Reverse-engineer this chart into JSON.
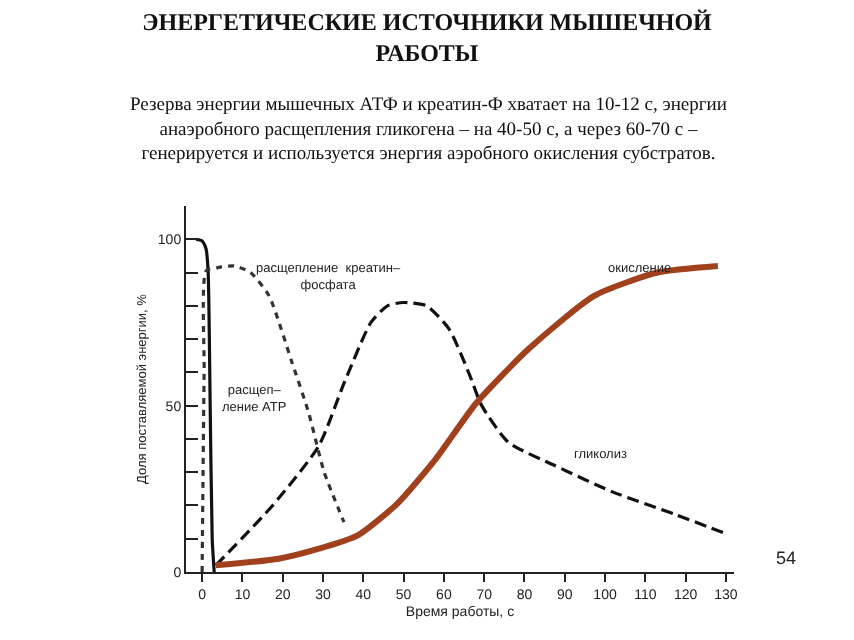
{
  "chart_data": {
    "type": "line",
    "title": "ЭНЕРГЕТИЧЕСКИЕ ИСТОЧНИКИ МЫШЕЧНОЙ\nРАБОТЫ",
    "subtitle": "Резерва энергии мышечных АТФ и креатин-Ф хватает на 10-12 с, энергии\nанаэробного расщепления гликогена – на 40-50 с, а через 60-70 с –\nгенерируется и используется энергия аэробного окисления субстратов.",
    "xlabel": "Время работы, с",
    "ylabel": "Доля поставляемой энергии, %",
    "xlim": [
      -4,
      132
    ],
    "ylim": [
      0,
      110
    ],
    "xticks": [
      0,
      10,
      20,
      30,
      40,
      50,
      60,
      70,
      80,
      90,
      100,
      110,
      120,
      130
    ],
    "yticks": [
      0,
      {
        "value": 10,
        "label": null
      },
      {
        "value": 20,
        "label": null
      },
      {
        "value": 30,
        "label": null
      },
      {
        "value": 40,
        "label": null
      },
      50,
      {
        "value": 60,
        "label": null
      },
      {
        "value": 70,
        "label": null
      },
      {
        "value": 80,
        "label": null
      },
      {
        "value": 90,
        "label": null
      },
      100
    ],
    "marker": "none",
    "series": [
      {
        "color": "#111111",
        "line_style": "solid",
        "x": [
          -1.5,
          0,
          1,
          1.5,
          2,
          2.5,
          3
        ],
        "values": [
          100,
          99.5,
          97,
          90,
          50,
          10,
          0
        ]
      },
      {
        "color": "#333333",
        "line_style": "dotted",
        "x": [
          0,
          0.5,
          1,
          4,
          8,
          12,
          16.6,
          22.3,
          26.4,
          30.3,
          35.2
        ],
        "values": [
          0,
          60,
          90.5,
          91.5,
          92,
          90,
          83,
          63,
          48,
          30,
          15
        ]
      },
      {
        "color": "#111111",
        "line_style": "dashed",
        "x": [
          3.4,
          17.5,
          29,
          35.3,
          41.9,
          46,
          50,
          55.7,
          61.3,
          66.3,
          69.4,
          76,
          87.5,
          102,
          117,
          130
        ],
        "values": [
          2,
          20,
          38,
          57,
          75,
          80,
          81,
          80,
          73,
          59.5,
          50,
          39,
          32,
          24,
          17.5,
          11.5
        ]
      },
      {
        "color": "#a0401c",
        "line_style": "solid",
        "x": [
          3.4,
          19,
          29,
          38.6,
          48.4,
          58,
          68,
          81,
          97.3,
          113,
          128
        ],
        "values": [
          2,
          4,
          7,
          11,
          20.5,
          34,
          50.7,
          67,
          83,
          90,
          92
        ]
      }
    ],
    "annotations": [
      "расщепление  креатин–\nфосфата",
      "расщеп–\nление ATP",
      "окисление",
      "гликолиз",
      "54"
    ]
  }
}
